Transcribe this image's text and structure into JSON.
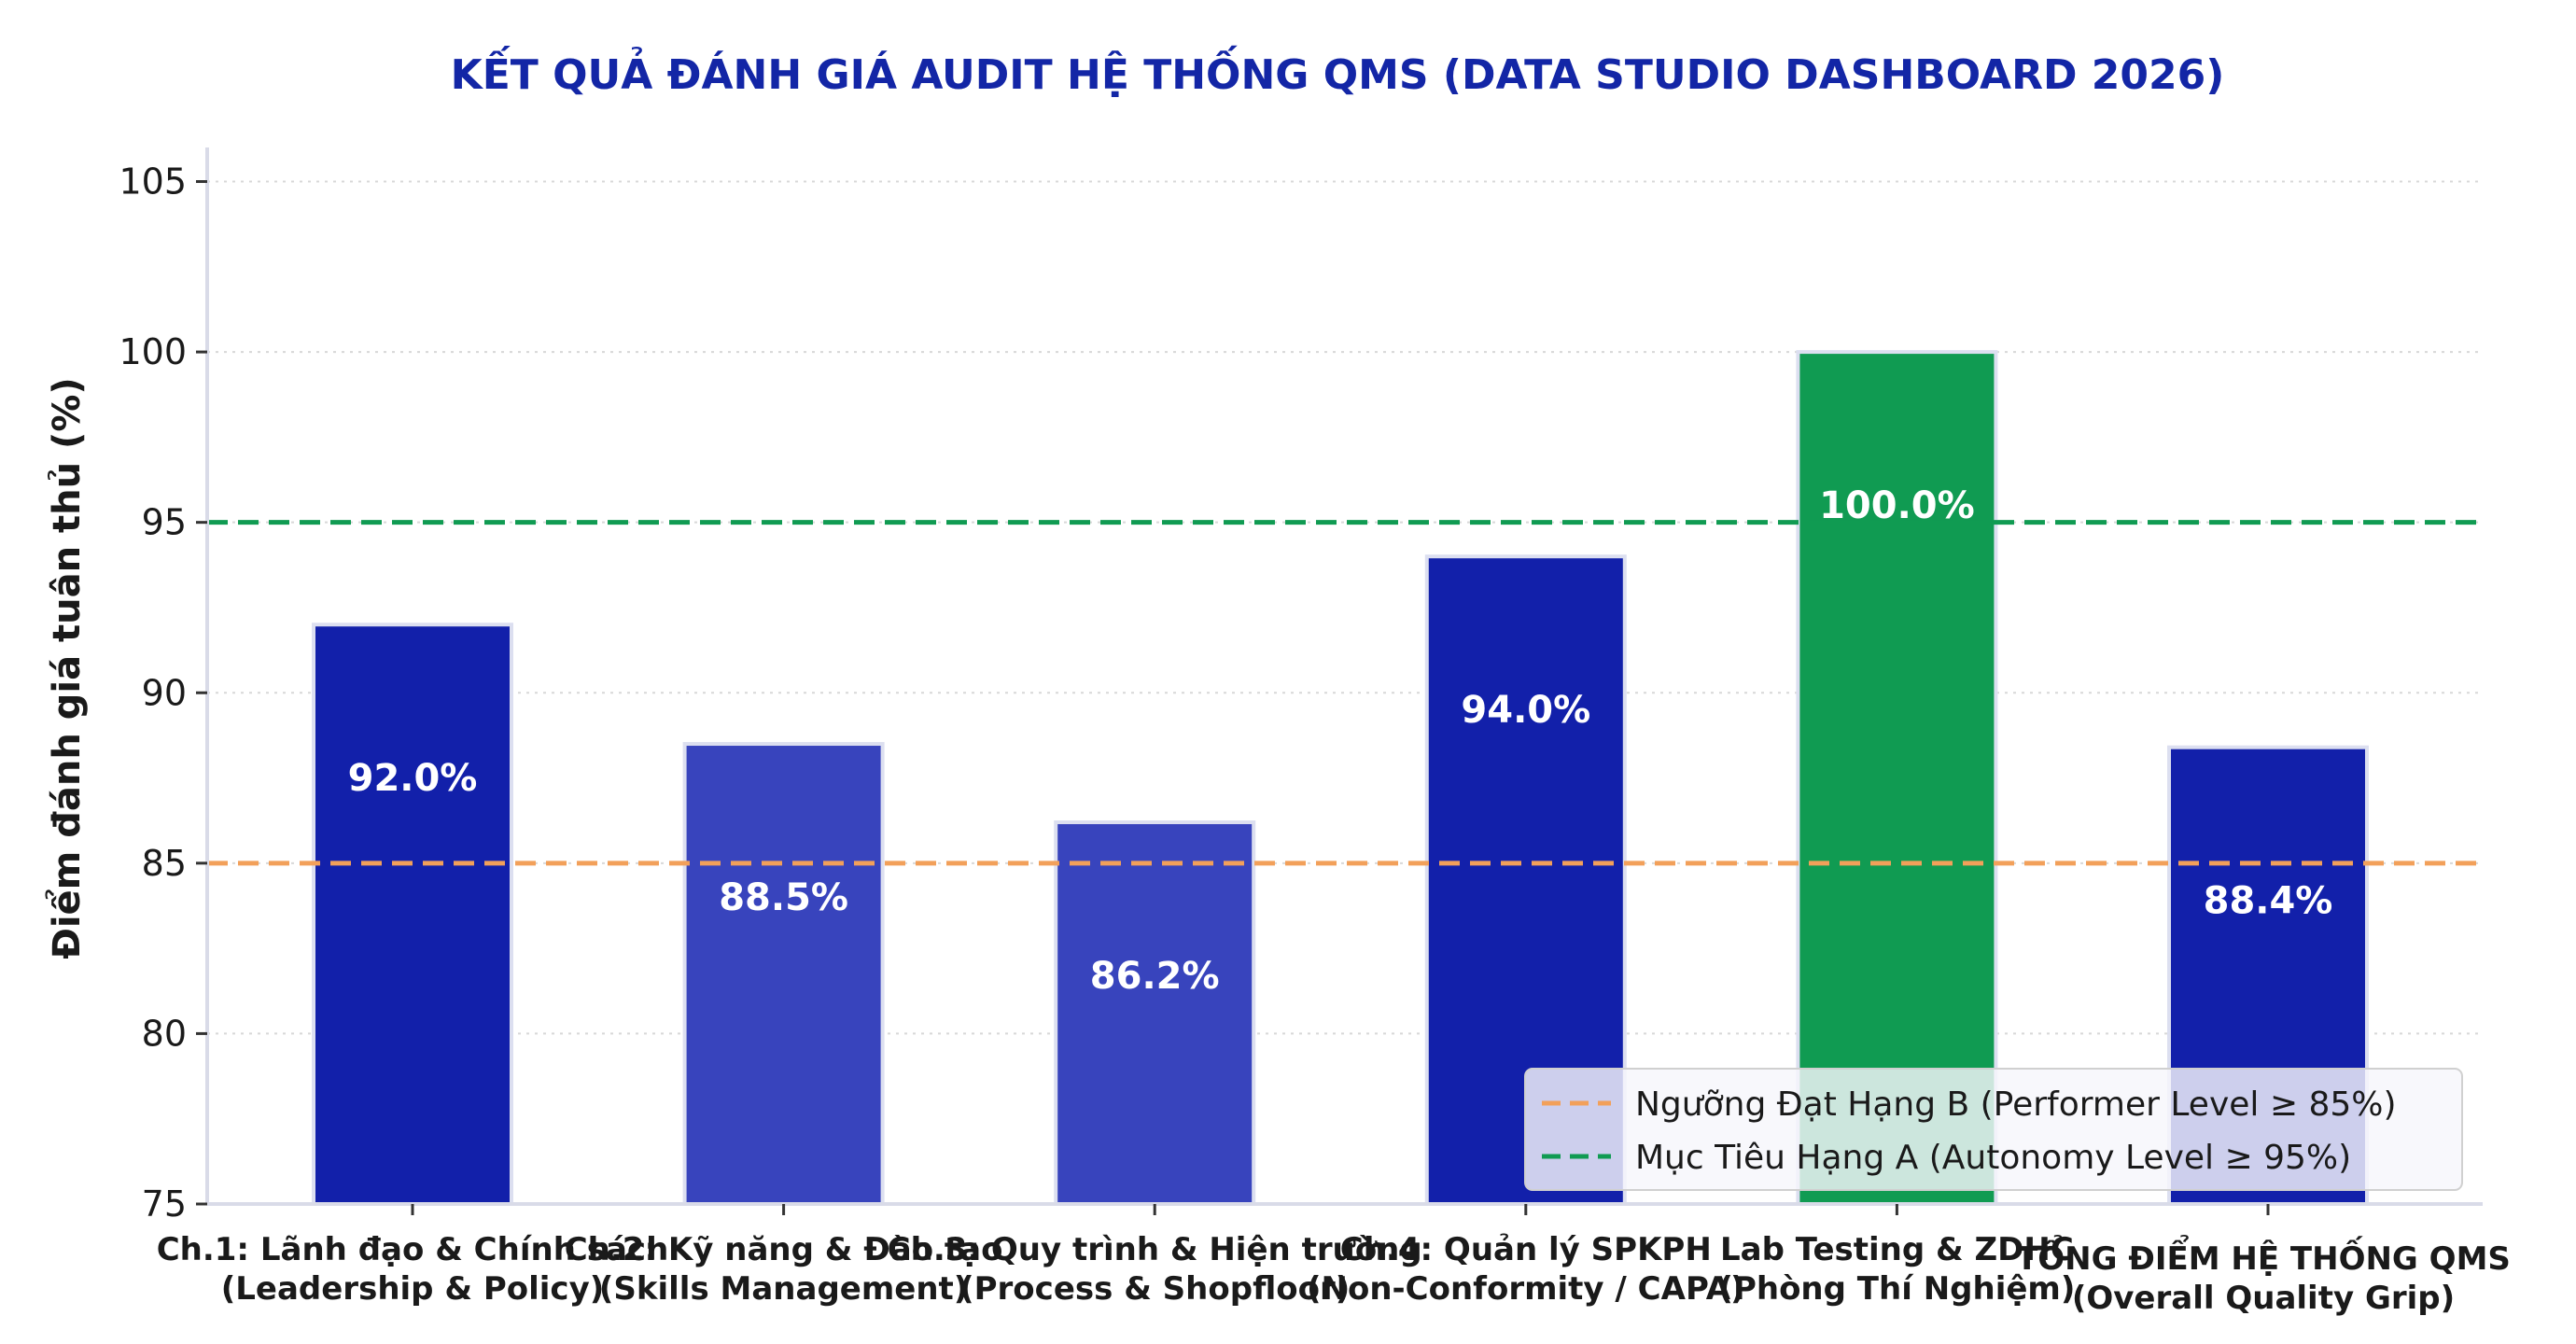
{
  "chart_data": {
    "type": "bar",
    "title": "KẾT QUẢ ĐÁNH GIÁ AUDIT HỆ THỐNG QMS (DATA STUDIO DASHBOARD 2026)",
    "xlabel": "",
    "ylabel": "Điểm đánh giá tuân thủ (%)",
    "ylim": [
      75,
      106
    ],
    "yticks": [
      75,
      80,
      85,
      90,
      95,
      100,
      105
    ],
    "grid": true,
    "legend_position": "lower-right",
    "categories": [
      [
        "Ch.1: Lãnh đạo & Chính sách",
        "(Leadership & Policy)"
      ],
      [
        "Ch.2: Kỹ năng & Đào tạo",
        "(Skills Management)"
      ],
      [
        "Ch.3: Quy trình & Hiện trường",
        "(Process & Shopfloor)"
      ],
      [
        "Ch.4: Quản lý SPKPH",
        "(Non-Conformity / CAPA)"
      ],
      [
        "Lab Testing & ZDHC",
        "(Phòng Thí Nghiệm)"
      ],
      [
        "TỔNG ĐIỂM HỆ THỐNG QMS",
        "(Overall Quality Grip)"
      ]
    ],
    "values": [
      92.0,
      88.5,
      86.2,
      94.0,
      100.0,
      88.4
    ],
    "value_labels": [
      "92.0%",
      "88.5%",
      "86.2%",
      "94.0%",
      "100.0%",
      "88.4%"
    ],
    "bar_colors": [
      "#1220aa",
      "#3844bd",
      "#3844bd",
      "#1220aa",
      "#109b52",
      "#1220aa"
    ],
    "reference_lines": [
      {
        "label": "Ngưỡng Đạt Hạng B (Performer Level ≥ 85%)",
        "value": 85,
        "color": "#f2a05a",
        "style": "dashed"
      },
      {
        "label": "Mục Tiêu Hạng A (Autonomy Level ≥ 95%)",
        "value": 95,
        "color": "#109b52",
        "style": "dashed"
      }
    ],
    "colors": {
      "title": "#1326a6",
      "axis": "#d9dbe8",
      "bar_edge": "#dcdff0",
      "value_label": "#ffffff",
      "text": "#1a1a1a"
    }
  }
}
